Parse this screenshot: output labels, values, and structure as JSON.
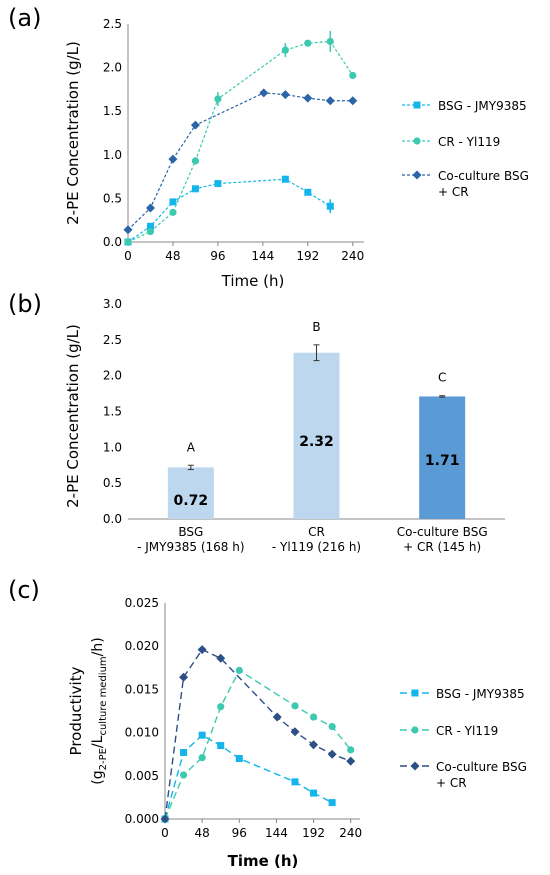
{
  "chart_data": [
    {
      "panel_label": "(a)",
      "type": "line",
      "xlabel": "Time (h)",
      "ylabel": "2-PE Concentration (g/L)",
      "xlim": [
        0,
        252
      ],
      "ylim": [
        0,
        2.5
      ],
      "xticks": [
        "0",
        "48",
        "96",
        "144",
        "192",
        "240"
      ],
      "yticks": [
        "0.0",
        "0.5",
        "1.0",
        "1.5",
        "2.0",
        "2.5"
      ],
      "grid": false,
      "legend_position": "right",
      "series": [
        {
          "name": "BSG - JMY9385",
          "color": "#13b5ea",
          "marker": "square",
          "x": [
            0,
            24,
            48,
            72,
            96,
            168,
            192,
            216
          ],
          "y": [
            0.0,
            0.18,
            0.46,
            0.61,
            0.67,
            0.72,
            0.57,
            0.41
          ],
          "err": [
            0,
            0,
            0,
            0,
            0,
            0,
            0,
            0.08
          ]
        },
        {
          "name": "CR - Yl119",
          "color": "#3dc9b0",
          "marker": "circle",
          "x": [
            0,
            24,
            48,
            72,
            96,
            168,
            192,
            216,
            240
          ],
          "y": [
            0.0,
            0.12,
            0.34,
            0.93,
            1.64,
            2.2,
            2.28,
            2.3,
            1.91
          ],
          "err": [
            0,
            0,
            0,
            0,
            0.08,
            0.08,
            0,
            0.12,
            0
          ]
        },
        {
          "name": "Co-culture BSG + CR",
          "color": "#2c64a8",
          "marker": "diamond",
          "x": [
            0,
            24,
            48,
            72,
            145,
            168,
            192,
            216,
            240
          ],
          "y": [
            0.14,
            0.39,
            0.95,
            1.34,
            1.71,
            1.69,
            1.65,
            1.62,
            1.62
          ],
          "err": [
            0,
            0,
            0,
            0,
            0,
            0,
            0,
            0,
            0
          ]
        }
      ]
    },
    {
      "panel_label": "(b)",
      "type": "bar",
      "ylabel": "2-PE Concentration (g/L)",
      "ylim": [
        0,
        3.0
      ],
      "yticks": [
        "0.0",
        "0.5",
        "1.0",
        "1.5",
        "2.0",
        "2.5",
        "3.0"
      ],
      "categories": [
        [
          "BSG",
          "- JMY9385 (168 h)"
        ],
        [
          "CR",
          "- Yl119 (216 h)"
        ],
        [
          "Co-culture BSG",
          "+ CR (145 h)"
        ]
      ],
      "values": [
        0.72,
        2.32,
        1.71
      ],
      "value_labels": [
        "0.72",
        "2.32",
        "1.71"
      ],
      "err": [
        0.03,
        0.11,
        0.01
      ],
      "group_letters": [
        "A",
        "B",
        "C"
      ],
      "colors": [
        "#bdd7ee",
        "#bdd7ee",
        "#5b9bd5"
      ]
    },
    {
      "panel_label": "(c)",
      "type": "line",
      "xlabel": "Time (h)",
      "ylabel_line1": "Productivity",
      "ylabel_line2": {
        "p1": "(g",
        "sub1": "2-PE",
        "p2": "/L",
        "sub2": "culture medium",
        "p3": "/h)"
      },
      "xlim": [
        0,
        252
      ],
      "ylim": [
        0,
        0.025
      ],
      "xticks": [
        "0",
        "48",
        "96",
        "144",
        "192",
        "240"
      ],
      "yticks": [
        "0.000",
        "0.005",
        "0.010",
        "0.015",
        "0.020",
        "0.025"
      ],
      "grid": false,
      "legend_position": "right",
      "series": [
        {
          "name": "BSG - JMY9385",
          "color": "#13b5ea",
          "marker": "square",
          "x": [
            0,
            24,
            48,
            72,
            96,
            168,
            192,
            216
          ],
          "y": [
            0.0,
            0.0077,
            0.0097,
            0.0085,
            0.007,
            0.0043,
            0.003,
            0.0019
          ]
        },
        {
          "name": "CR - Yl119",
          "color": "#3dc9b0",
          "marker": "circle",
          "x": [
            0,
            24,
            48,
            72,
            96,
            168,
            192,
            216,
            240
          ],
          "y": [
            0.0,
            0.0051,
            0.0071,
            0.013,
            0.0172,
            0.0131,
            0.0118,
            0.0107,
            0.008
          ]
        },
        {
          "name": "Co-culture BSG + CR",
          "color": "#2c4f86",
          "marker": "diamond",
          "x": [
            0,
            24,
            48,
            72,
            145,
            168,
            192,
            216,
            240
          ],
          "y": [
            0.0,
            0.0164,
            0.0196,
            0.0186,
            0.0118,
            0.0101,
            0.0086,
            0.0075,
            0.0067
          ]
        }
      ]
    }
  ]
}
